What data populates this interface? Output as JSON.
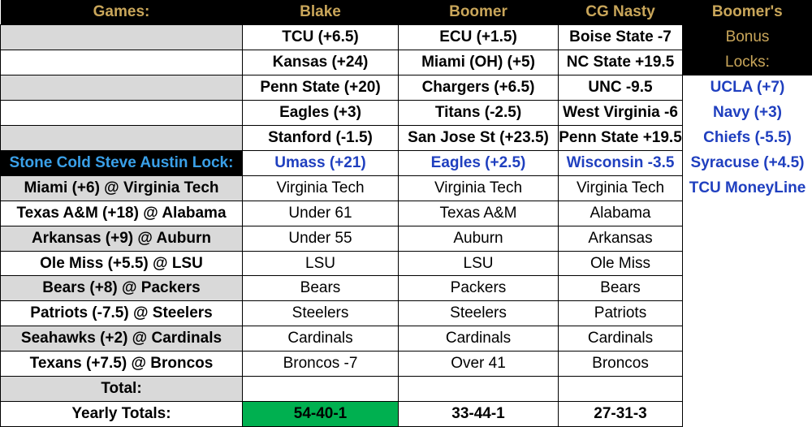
{
  "header": {
    "games": "Games:",
    "picker1": "Blake",
    "picker2": "Boomer",
    "picker3": "CG Nasty",
    "bonus_title": "Boomer's"
  },
  "bonus": {
    "line1": "Bonus",
    "line2": "Locks:",
    "locks": [
      "UCLA (+7)",
      "Navy (+3)",
      "Chiefs (-5.5)",
      "Syracuse (+4.5)",
      "TCU MoneyLine"
    ]
  },
  "lock_rows": [
    {
      "blake": "TCU (+6.5)",
      "boomer": "ECU (+1.5)",
      "nasty": "Boise State -7"
    },
    {
      "blake": "Kansas (+24)",
      "boomer": "Miami (OH) (+5)",
      "nasty": "NC State +19.5"
    },
    {
      "blake": "Penn State (+20)",
      "boomer": "Chargers (+6.5)",
      "nasty": "UNC -9.5"
    },
    {
      "blake": "Eagles (+3)",
      "boomer": "Titans (-2.5)",
      "nasty": "West Virginia -6"
    },
    {
      "blake": "Stanford (-1.5)",
      "boomer": "San Jose St (+23.5)",
      "nasty": "Penn State +19.5"
    }
  ],
  "stone_cold": {
    "label": "Stone Cold Steve Austin Lock:",
    "blake": "Umass (+21)",
    "boomer": "Eagles (+2.5)",
    "nasty": "Wisconsin -3.5"
  },
  "games": [
    {
      "game": "Miami (+6) @ Virginia Tech",
      "blake": "Virginia Tech",
      "boomer": "Virginia Tech",
      "nasty": "Virginia Tech"
    },
    {
      "game": "Texas A&M (+18) @ Alabama",
      "blake": "Under 61",
      "boomer": "Texas A&M",
      "nasty": "Alabama"
    },
    {
      "game": "Arkansas (+9) @ Auburn",
      "blake": "Under 55",
      "boomer": "Auburn",
      "nasty": "Arkansas"
    },
    {
      "game": "Ole Miss (+5.5) @ LSU",
      "blake": "LSU",
      "boomer": "LSU",
      "nasty": "Ole Miss"
    },
    {
      "game": "Bears (+8) @ Packers",
      "blake": "Bears",
      "boomer": "Packers",
      "nasty": "Bears"
    },
    {
      "game": "Patriots (-7.5) @ Steelers",
      "blake": "Steelers",
      "boomer": "Steelers",
      "nasty": "Patriots"
    },
    {
      "game": "Seahawks (+2) @ Cardinals",
      "blake": "Cardinals",
      "boomer": "Cardinals",
      "nasty": "Cardinals"
    },
    {
      "game": "Texans (+7.5) @ Broncos",
      "blake": "Broncos -7",
      "boomer": "Over 41",
      "nasty": "Broncos"
    }
  ],
  "total": {
    "label": "Total:",
    "blake": "",
    "boomer": "",
    "nasty": ""
  },
  "yearly": {
    "label": "Yearly Totals:",
    "blake": "54-40-1",
    "boomer": "33-44-1",
    "nasty": "27-31-3"
  },
  "colors": {
    "header_bg": "#000000",
    "header_text": "#c9a65a",
    "lock_blue": "#1f3fbf",
    "stone_cold_label": "#3aa0e8",
    "gray_cell": "#d9d9d9",
    "leader_green": "#00b050"
  }
}
